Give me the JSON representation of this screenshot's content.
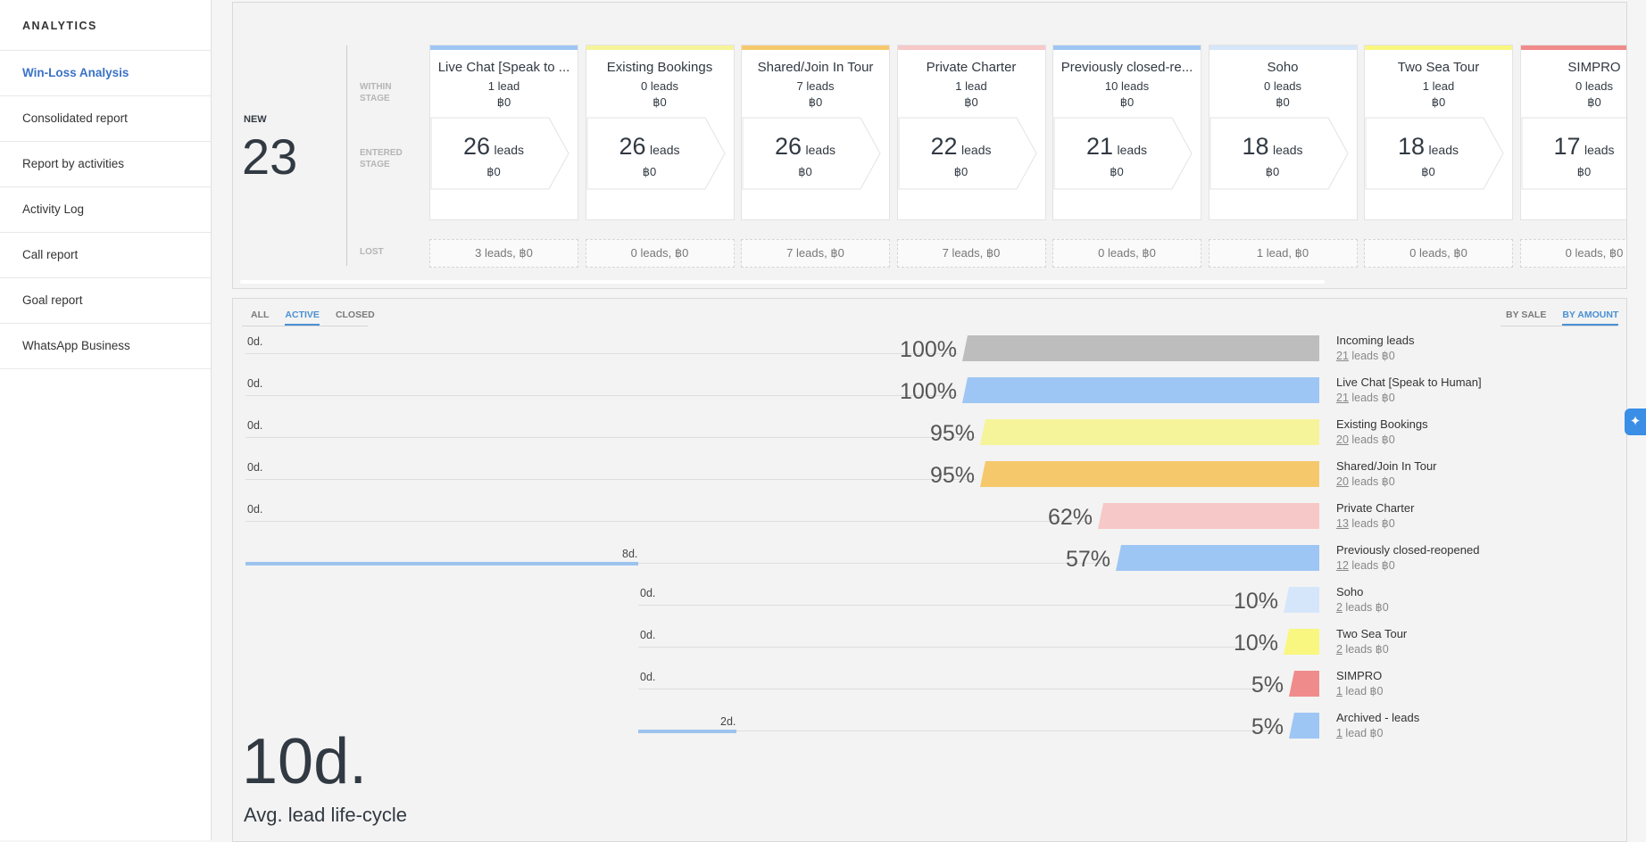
{
  "sidebar": {
    "heading": "ANALYTICS",
    "items": [
      {
        "label": "Win-Loss Analysis",
        "active": true
      },
      {
        "label": "Consolidated report"
      },
      {
        "label": "Report by activities"
      },
      {
        "label": "Activity Log"
      },
      {
        "label": "Call report"
      },
      {
        "label": "Goal report"
      },
      {
        "label": "WhatsApp Business"
      }
    ]
  },
  "pipeline": {
    "new_label": "NEW",
    "new_count": "23",
    "row_labels": {
      "within": "WITHIN STAGE",
      "entered": "ENTERED STAGE",
      "lost": "LOST"
    },
    "stages": [
      {
        "title": "Live Chat [Speak to ...",
        "within": "1 lead",
        "within_amt": "฿0",
        "entered": "26",
        "entered_unit": "leads",
        "entered_amt": "฿0",
        "lost": "3 leads, ฿0",
        "color": "#9ec6f4"
      },
      {
        "title": "Existing Bookings",
        "within": "0 leads",
        "within_amt": "฿0",
        "entered": "26",
        "entered_unit": "leads",
        "entered_amt": "฿0",
        "lost": "0 leads, ฿0",
        "color": "#f6f49a"
      },
      {
        "title": "Shared/Join In Tour",
        "within": "7 leads",
        "within_amt": "฿0",
        "entered": "26",
        "entered_unit": "leads",
        "entered_amt": "฿0",
        "lost": "7 leads, ฿0",
        "color": "#f5c96b"
      },
      {
        "title": "Private Charter",
        "within": "1 lead",
        "within_amt": "฿0",
        "entered": "22",
        "entered_unit": "leads",
        "entered_amt": "฿0",
        "lost": "7 leads, ฿0",
        "color": "#f7c8c8"
      },
      {
        "title": "Previously closed-re...",
        "within": "10 leads",
        "within_amt": "฿0",
        "entered": "21",
        "entered_unit": "leads",
        "entered_amt": "฿0",
        "lost": "0 leads, ฿0",
        "color": "#9ec6f4"
      },
      {
        "title": "Soho",
        "within": "0 leads",
        "within_amt": "฿0",
        "entered": "18",
        "entered_unit": "leads",
        "entered_amt": "฿0",
        "lost": "1 lead, ฿0",
        "color": "#d6e6fa"
      },
      {
        "title": "Two Sea Tour",
        "within": "1 lead",
        "within_amt": "฿0",
        "entered": "18",
        "entered_unit": "leads",
        "entered_amt": "฿0",
        "lost": "0 leads, ฿0",
        "color": "#f9f77f"
      },
      {
        "title": "SIMPRO",
        "within": "0 leads",
        "within_amt": "฿0",
        "entered": "17",
        "entered_unit": "leads",
        "entered_amt": "฿0",
        "lost": "0 leads, ฿0",
        "color": "#f08b8b"
      }
    ]
  },
  "filters": {
    "status_tabs": [
      "ALL",
      "ACTIVE",
      "CLOSED"
    ],
    "status_active": "ACTIVE",
    "mode_tabs": [
      "BY SALE",
      "BY AMOUNT"
    ],
    "mode_active": "BY AMOUNT"
  },
  "funnel": [
    {
      "name": "Incoming leads",
      "count": "21",
      "meta_rest": " leads ฿0",
      "pct": "100%",
      "pct_value": 100,
      "days": "0d.",
      "days_value": 0,
      "color": "#bdbdbd",
      "start_days": 0
    },
    {
      "name": "Live Chat [Speak to Human]",
      "count": "21",
      "meta_rest": " leads ฿0",
      "pct": "100%",
      "pct_value": 100,
      "days": "0d.",
      "days_value": 0,
      "color": "#9ec6f4",
      "start_days": 0
    },
    {
      "name": "Existing Bookings",
      "count": "20",
      "meta_rest": " leads ฿0",
      "pct": "95%",
      "pct_value": 95,
      "days": "0d.",
      "days_value": 0,
      "color": "#f6f49a",
      "start_days": 0
    },
    {
      "name": "Shared/Join In Tour",
      "count": "20",
      "meta_rest": " leads ฿0",
      "pct": "95%",
      "pct_value": 95,
      "days": "0d.",
      "days_value": 0,
      "color": "#f5c96b",
      "start_days": 0
    },
    {
      "name": "Private Charter",
      "count": "13",
      "meta_rest": " leads ฿0",
      "pct": "62%",
      "pct_value": 62,
      "days": "0d.",
      "days_value": 0,
      "color": "#f7c8c8",
      "start_days": 0
    },
    {
      "name": "Previously closed-reopened",
      "count": "12",
      "meta_rest": " leads ฿0",
      "pct": "57%",
      "pct_value": 57,
      "days": "8d.",
      "days_value": 8,
      "color": "#9ec6f4",
      "start_days": 0
    },
    {
      "name": "Soho",
      "count": "2",
      "meta_rest": " leads ฿0",
      "pct": "10%",
      "pct_value": 10,
      "days": "0d.",
      "days_value": 0,
      "color": "#d6e6fa",
      "start_days": 8
    },
    {
      "name": "Two Sea Tour",
      "count": "2",
      "meta_rest": " leads ฿0",
      "pct": "10%",
      "pct_value": 10,
      "days": "0d.",
      "days_value": 0,
      "color": "#f9f77f",
      "start_days": 8
    },
    {
      "name": "SIMPRO",
      "count": "1",
      "meta_rest": " lead ฿0",
      "pct": "5%",
      "pct_value": 5,
      "days": "0d.",
      "days_value": 0,
      "color": "#f08b8b",
      "start_days": 8
    },
    {
      "name": "Archived - leads",
      "count": "1",
      "meta_rest": " lead ฿0",
      "pct": "5%",
      "pct_value": 5,
      "days": "2d.",
      "days_value": 2,
      "color": "#9ec6f4",
      "start_days": 8
    }
  ],
  "summary": {
    "avg_value": "10d.",
    "avg_label": "Avg. lead life-cycle"
  },
  "fab_icon": "sparkle-icon"
}
